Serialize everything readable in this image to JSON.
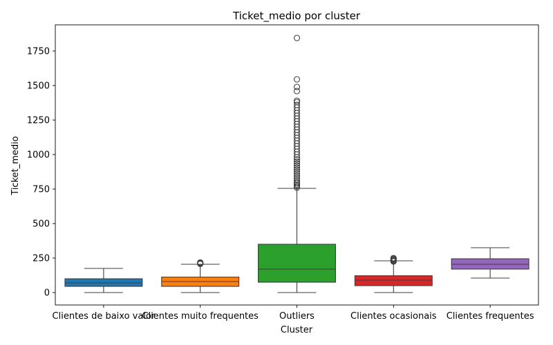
{
  "chart_data": {
    "type": "box",
    "title": "Ticket_medio por cluster",
    "xlabel": "Cluster",
    "ylabel": "Ticket_medio",
    "ylim": [
      -90,
      1940
    ],
    "yticks": [
      0,
      250,
      500,
      750,
      1000,
      1250,
      1500,
      1750
    ],
    "categories": [
      {
        "name": "Clientes de baixo valor",
        "color": "#1f77b4",
        "whisker_low": 0,
        "q1": 45,
        "median": 70,
        "q3": 100,
        "whisker_high": 175,
        "outliers": []
      },
      {
        "name": "Clientes muito frequentes",
        "color": "#ff7f0e",
        "whisker_low": 0,
        "q1": 45,
        "median": 80,
        "q3": 112,
        "whisker_high": 205,
        "outliers": [
          208,
          210,
          212,
          214,
          216,
          218
        ]
      },
      {
        "name": "Outliers",
        "color": "#2ca02c",
        "whisker_low": 0,
        "q1": 75,
        "median": 170,
        "q3": 350,
        "whisker_high": 755,
        "outliers": [
          760,
          770,
          780,
          790,
          800,
          815,
          830,
          845,
          860,
          875,
          890,
          905,
          920,
          935,
          950,
          965,
          980,
          1000,
          1020,
          1040,
          1060,
          1080,
          1100,
          1120,
          1140,
          1160,
          1180,
          1200,
          1220,
          1240,
          1260,
          1280,
          1300,
          1320,
          1340,
          1360,
          1380,
          1390,
          1460,
          1490,
          1545,
          1845
        ]
      },
      {
        "name": "Clientes ocasionais",
        "color": "#d62728",
        "whisker_low": 0,
        "q1": 50,
        "median": 90,
        "q3": 122,
        "whisker_high": 230,
        "outliers": [
          225,
          230,
          235,
          240,
          245,
          250
        ]
      },
      {
        "name": "Clientes frequentes",
        "color": "#9467bd",
        "whisker_low": 105,
        "q1": 170,
        "median": 205,
        "q3": 245,
        "whisker_high": 325,
        "outliers": []
      }
    ]
  }
}
